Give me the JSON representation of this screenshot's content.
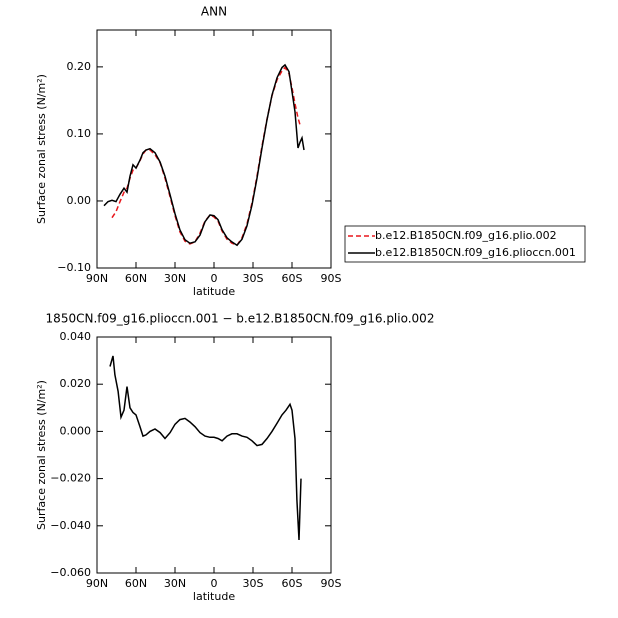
{
  "chart_data": [
    {
      "type": "line",
      "title": "ANN",
      "xlabel": "latitude",
      "ylabel": "Surface zonal stress (N/m²)",
      "x": [
        84.6,
        81.5,
        78.5,
        75.4,
        72.3,
        69.2,
        66.9,
        64.6,
        62.3,
        60.0,
        56.9,
        54.6,
        52.3,
        49.2,
        45.4,
        41.5,
        37.7,
        33.8,
        30.0,
        26.2,
        22.3,
        18.5,
        14.6,
        10.8,
        6.9,
        3.1,
        0.0,
        -3.1,
        -6.2,
        -10.0,
        -13.8,
        -17.7,
        -21.5,
        -25.4,
        -29.2,
        -33.1,
        -36.9,
        -40.8,
        -44.6,
        -48.5,
        -52.3,
        -54.6,
        -57.7,
        -60.0,
        -62.3,
        -64.6,
        -66.2,
        -67.7,
        -69.2
      ],
      "series": [
        {
          "name": "b.e12.B1850CN.f09_g16.plio.002",
          "color": "#e8161b",
          "dash": true,
          "values": [
            null,
            null,
            -0.025,
            -0.016,
            -0.001,
            0.013,
            0.019,
            0.034,
            0.046,
            0.049,
            0.06,
            0.07,
            0.076,
            0.076,
            0.069,
            0.057,
            0.034,
            0.006,
            -0.022,
            -0.046,
            -0.06,
            -0.064,
            -0.061,
            -0.048,
            -0.03,
            -0.021,
            -0.024,
            -0.03,
            -0.045,
            -0.057,
            -0.063,
            -0.066,
            -0.055,
            -0.034,
            -0.003,
            0.037,
            0.082,
            0.122,
            0.157,
            0.181,
            0.194,
            0.199,
            0.19,
            0.169,
            0.145,
            0.124,
            0.113,
            null,
            null
          ]
        },
        {
          "name": "b.e12.B1850CN.f09_g16.plioccn.001",
          "color": "#000000",
          "dash": false,
          "values": [
            -0.007,
            -0.001,
            0.001,
            -0.001,
            0.01,
            0.019,
            0.013,
            0.037,
            0.054,
            0.049,
            0.061,
            0.072,
            0.076,
            0.078,
            0.072,
            0.058,
            0.037,
            0.009,
            -0.019,
            -0.043,
            -0.058,
            -0.063,
            -0.061,
            -0.051,
            -0.031,
            -0.021,
            -0.022,
            -0.028,
            -0.043,
            -0.055,
            -0.061,
            -0.066,
            -0.057,
            -0.037,
            -0.006,
            0.034,
            0.079,
            0.121,
            0.158,
            0.184,
            0.199,
            0.203,
            0.193,
            0.163,
            0.133,
            0.079,
            0.088,
            0.094,
            0.076
          ]
        }
      ],
      "xlim": [
        90,
        -90
      ],
      "xticks": [
        {
          "value": 90,
          "label": "90N"
        },
        {
          "value": 60,
          "label": "60N"
        },
        {
          "value": 30,
          "label": "30N"
        },
        0,
        {
          "value": -30,
          "label": "30S"
        },
        {
          "value": -60,
          "label": "60S"
        },
        {
          "value": -90,
          "label": "90S"
        }
      ],
      "ylim": [
        -0.1,
        0.255
      ],
      "yticks": [
        {
          "value": -0.1,
          "label": "−0.10"
        },
        {
          "value": 0,
          "label": "0.00"
        },
        {
          "value": 0.1,
          "label": "0.10"
        },
        {
          "value": 0.2,
          "label": "0.20"
        }
      ],
      "legend": "outside right"
    },
    {
      "type": "line",
      "title": "1850CN.f09_g16.plioccn.001 − b.e12.B1850CN.f09_g16.plio.002",
      "xlabel": "latitude",
      "ylabel": "Surface zonal stress (N/m²)",
      "x": [
        80.0,
        77.7,
        76.2,
        73.8,
        71.5,
        69.2,
        66.9,
        64.6,
        62.3,
        60.0,
        56.9,
        54.6,
        52.3,
        49.2,
        45.4,
        41.5,
        37.7,
        33.8,
        30.0,
        26.2,
        22.3,
        18.5,
        14.6,
        10.8,
        6.9,
        3.1,
        0.0,
        -3.1,
        -6.2,
        -10.0,
        -13.8,
        -17.7,
        -21.5,
        -25.4,
        -29.2,
        -33.1,
        -36.9,
        -40.8,
        -44.6,
        -48.5,
        -52.3,
        -55.4,
        -58.5,
        -60.0,
        -62.3,
        -63.8,
        -65.4,
        -66.9
      ],
      "series": [
        {
          "color": "#000000",
          "dash": false,
          "values": [
            0.0275,
            0.032,
            0.024,
            0.017,
            0.006,
            0.009,
            0.019,
            0.01,
            0.008,
            0.007,
            0.002,
            -0.002,
            -0.0015,
            0.0,
            0.001,
            -0.0005,
            -0.003,
            -0.0005,
            0.003,
            0.005,
            0.0055,
            0.004,
            0.002,
            -0.0005,
            -0.002,
            -0.0025,
            -0.0025,
            -0.003,
            -0.004,
            -0.002,
            -0.001,
            -0.001,
            -0.002,
            -0.0025,
            -0.004,
            -0.006,
            -0.0055,
            -0.003,
            0.0,
            0.0035,
            0.007,
            0.009,
            0.0115,
            0.009,
            -0.003,
            -0.029,
            -0.046,
            -0.02
          ]
        }
      ],
      "xlim": [
        90,
        -90
      ],
      "xticks": [
        {
          "value": 90,
          "label": "90N"
        },
        {
          "value": 60,
          "label": "60N"
        },
        {
          "value": 30,
          "label": "30N"
        },
        0,
        {
          "value": -30,
          "label": "30S"
        },
        {
          "value": -60,
          "label": "60S"
        },
        {
          "value": -90,
          "label": "90S"
        }
      ],
      "ylim": [
        -0.06,
        0.04
      ],
      "yticks": [
        {
          "value": -0.06,
          "label": "−0.060"
        },
        {
          "value": -0.04,
          "label": "−0.040"
        },
        {
          "value": -0.02,
          "label": "−0.020"
        },
        {
          "value": 0,
          "label": "0.000"
        },
        {
          "value": 0.02,
          "label": "0.020"
        },
        {
          "value": 0.04,
          "label": "0.040"
        }
      ]
    }
  ]
}
